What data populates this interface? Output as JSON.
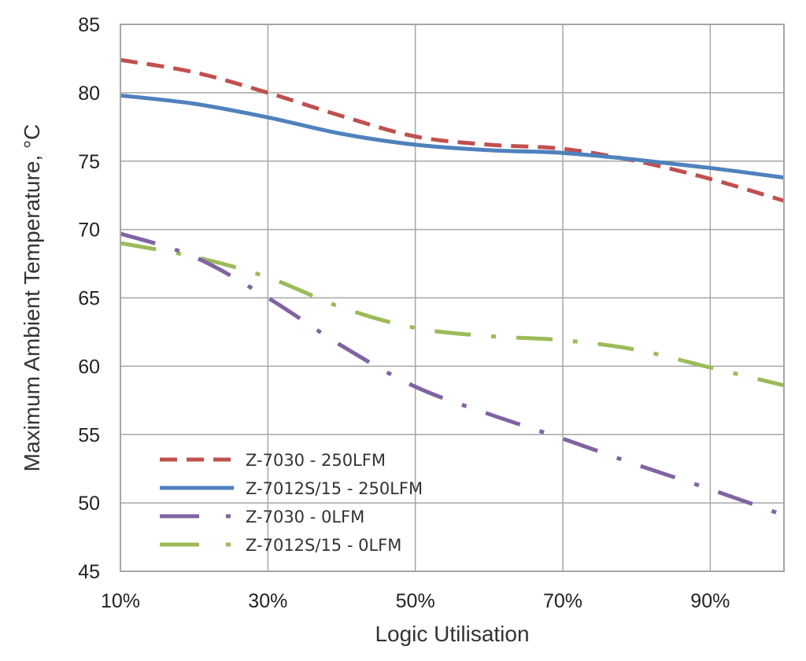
{
  "chart_data": {
    "type": "line",
    "title": "",
    "xlabel": "Logic Utilisation",
    "ylabel": "Maximum Ambient Temperature, °C",
    "xlim": [
      0.1,
      1.0
    ],
    "ylim": [
      45,
      85
    ],
    "x_ticks": [
      0.1,
      0.3,
      0.5,
      0.7,
      0.9
    ],
    "x_tick_labels": [
      "10%",
      "30%",
      "50%",
      "70%",
      "90%"
    ],
    "y_ticks": [
      45,
      50,
      55,
      60,
      65,
      70,
      75,
      80,
      85
    ],
    "y_tick_labels": [
      "45",
      "50",
      "55",
      "60",
      "65",
      "70",
      "75",
      "80",
      "85"
    ],
    "grid": true,
    "legend_position": "bottom-left",
    "x": [
      0.1,
      0.2,
      0.3,
      0.4,
      0.5,
      0.6,
      0.7,
      0.8,
      0.9,
      1.0
    ],
    "series": [
      {
        "name": "Z-7030 - 250LFM",
        "color": "#c0504d",
        "dash": "dashed",
        "values": [
          82.4,
          81.5,
          80.0,
          78.3,
          76.8,
          76.2,
          75.9,
          75.0,
          73.7,
          72.1
        ]
      },
      {
        "name": "Z-7012S/15 - 250LFM",
        "color": "#4f81bd",
        "dash": "solid",
        "values": [
          79.8,
          79.2,
          78.2,
          77.0,
          76.2,
          75.8,
          75.6,
          75.1,
          74.5,
          73.8
        ]
      },
      {
        "name": "Z-7030 - 0LFM",
        "color": "#8064a2",
        "dash": "long-dash-dot",
        "values": [
          69.7,
          68.0,
          65.0,
          61.5,
          58.5,
          56.5,
          54.7,
          52.8,
          51.0,
          49.1
        ]
      },
      {
        "name": "Z-7012S/15 - 0LFM",
        "color": "#9bbb59",
        "dash": "long-dash-dot",
        "values": [
          69.0,
          68.0,
          66.5,
          64.3,
          62.8,
          62.2,
          61.9,
          61.2,
          59.9,
          58.6
        ]
      }
    ]
  }
}
